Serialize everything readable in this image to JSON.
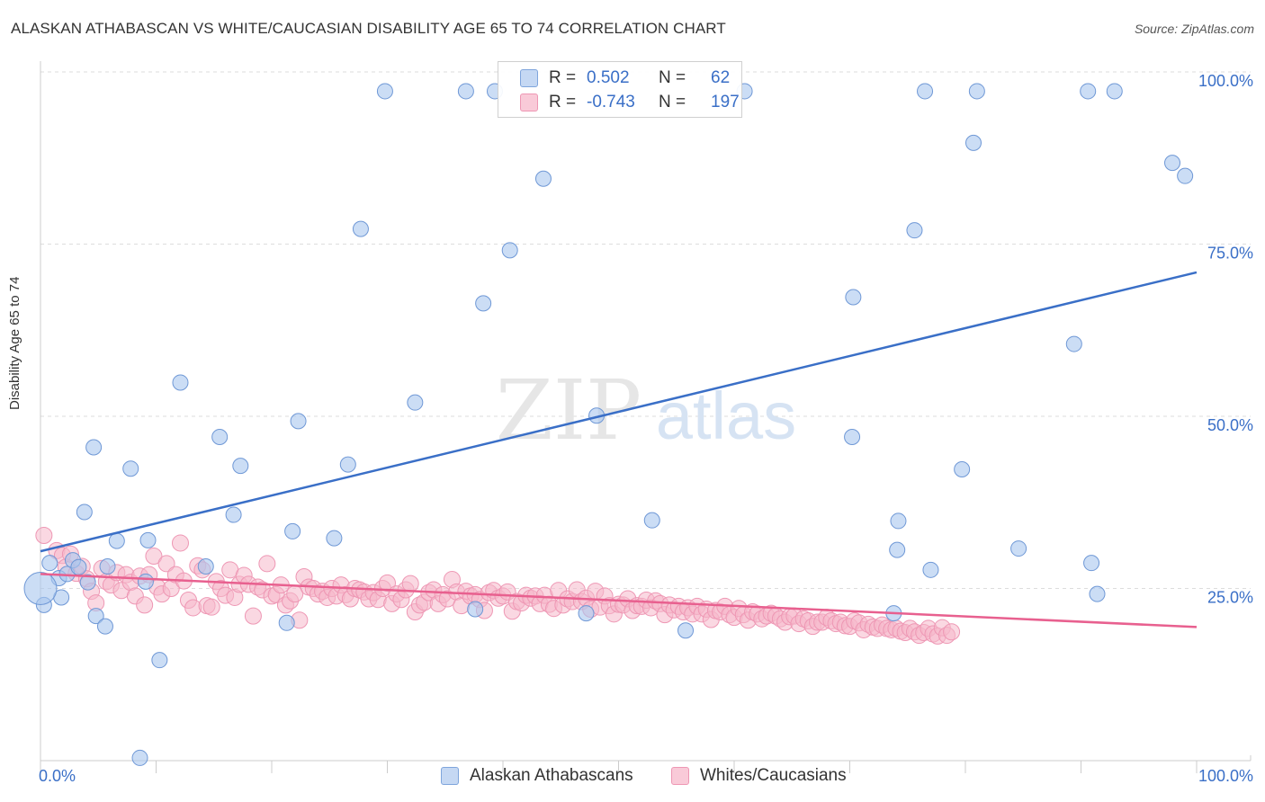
{
  "title": "ALASKAN ATHABASCAN VS WHITE/CAUCASIAN DISABILITY AGE 65 TO 74 CORRELATION CHART",
  "source": "Source: ZipAtlas.com",
  "colors": {
    "blue": "#3a6fc7",
    "blue_fill": "#a9c6ee",
    "pink": "#e8608f",
    "pink_fill": "#f6b8cb",
    "grid": "#dddddd"
  },
  "legend": {
    "r_label": "R =",
    "n_label": "N =",
    "rows": [
      {
        "r": "0.502",
        "n": "62"
      },
      {
        "r": "-0.743",
        "n": "197"
      }
    ]
  },
  "chart_data": {
    "type": "scatter",
    "title": "ALASKAN ATHABASCAN VS WHITE/CAUCASIAN DISABILITY AGE 65 TO 74 CORRELATION CHART",
    "xlabel": "",
    "ylabel": "Disability Age 65 to 74",
    "xlim": [
      0,
      100
    ],
    "ylim": [
      0,
      100
    ],
    "x_tick_labels": [
      "0.0%",
      "100.0%"
    ],
    "y_tick_labels": [
      "25.0%",
      "50.0%",
      "75.0%",
      "100.0%"
    ],
    "watermark": {
      "zip": "ZIP",
      "atlas": "atlas"
    },
    "series": [
      {
        "name": "Alaskan Athabascans",
        "color": "#3a6fc7",
        "trend": {
          "x": [
            0,
            100
          ],
          "y": [
            30.4,
            70.9
          ]
        },
        "points": [
          [
            0.3,
            22.6
          ],
          [
            0.8,
            28.7
          ],
          [
            1.6,
            26.5
          ],
          [
            1.8,
            23.7
          ],
          [
            2.3,
            27.1
          ],
          [
            2.8,
            29.1
          ],
          [
            3.3,
            28.1
          ],
          [
            3.8,
            36.1
          ],
          [
            4.1,
            25.9
          ],
          [
            4.6,
            45.5
          ],
          [
            4.8,
            21.0
          ],
          [
            5.6,
            19.5
          ],
          [
            5.8,
            28.2
          ],
          [
            6.6,
            31.9
          ],
          [
            7.8,
            42.4
          ],
          [
            8.6,
            0.4
          ],
          [
            9.1,
            26.0
          ],
          [
            9.3,
            32.0
          ],
          [
            10.3,
            14.6
          ],
          [
            12.1,
            54.9
          ],
          [
            15.5,
            47.0
          ],
          [
            14.3,
            28.2
          ],
          [
            16.7,
            35.7
          ],
          [
            17.3,
            42.8
          ],
          [
            21.3,
            20.0
          ],
          [
            21.8,
            33.3
          ],
          [
            22.3,
            49.3
          ],
          [
            25.4,
            32.3
          ],
          [
            26.6,
            43.0
          ],
          [
            27.7,
            77.2
          ],
          [
            29.8,
            97.2
          ],
          [
            32.4,
            52.0
          ],
          [
            37.6,
            22.0
          ],
          [
            38.3,
            66.4
          ],
          [
            39.3,
            97.2
          ],
          [
            40.6,
            74.1
          ],
          [
            43.5,
            84.5
          ],
          [
            47.2,
            21.4
          ],
          [
            48.1,
            50.1
          ],
          [
            52.9,
            34.9
          ],
          [
            55.8,
            18.9
          ],
          [
            60.9,
            97.2
          ],
          [
            70.2,
            47.0
          ],
          [
            70.3,
            67.3
          ],
          [
            76.5,
            97.2
          ],
          [
            80.7,
            89.7
          ],
          [
            73.8,
            21.4
          ],
          [
            74.1,
            30.6
          ],
          [
            74.2,
            34.8
          ],
          [
            75.6,
            77.0
          ],
          [
            77.0,
            27.7
          ],
          [
            79.7,
            42.3
          ],
          [
            81.0,
            97.2
          ],
          [
            84.6,
            30.8
          ],
          [
            89.4,
            60.5
          ],
          [
            90.9,
            28.7
          ],
          [
            91.4,
            24.2
          ],
          [
            92.9,
            97.2
          ],
          [
            97.9,
            86.8
          ],
          [
            99.0,
            84.9
          ],
          [
            36.8,
            97.2
          ],
          [
            90.6,
            97.2
          ]
        ]
      },
      {
        "name": "Whites/Caucasians",
        "color": "#e8608f",
        "trend": {
          "x": [
            0,
            100
          ],
          "y": [
            27.1,
            19.4
          ]
        },
        "points": [
          [
            0.3,
            32.7
          ],
          [
            1.4,
            30.5
          ],
          [
            1.9,
            29.8
          ],
          [
            2.2,
            28.1
          ],
          [
            2.6,
            30.0
          ],
          [
            3.1,
            27.2
          ],
          [
            3.6,
            28.2
          ],
          [
            4.0,
            26.4
          ],
          [
            4.4,
            24.6
          ],
          [
            4.8,
            22.9
          ],
          [
            5.3,
            27.9
          ],
          [
            5.7,
            26.0
          ],
          [
            6.1,
            25.5
          ],
          [
            6.6,
            27.3
          ],
          [
            7.0,
            24.7
          ],
          [
            7.4,
            27.0
          ],
          [
            7.8,
            25.9
          ],
          [
            8.2,
            23.9
          ],
          [
            8.6,
            26.8
          ],
          [
            9.0,
            22.6
          ],
          [
            9.4,
            27.0
          ],
          [
            9.8,
            29.7
          ],
          [
            10.1,
            25.2
          ],
          [
            10.5,
            24.2
          ],
          [
            10.9,
            28.6
          ],
          [
            11.3,
            25.0
          ],
          [
            11.7,
            27.0
          ],
          [
            12.1,
            31.6
          ],
          [
            12.4,
            26.1
          ],
          [
            12.8,
            23.3
          ],
          [
            13.2,
            22.2
          ],
          [
            13.6,
            28.3
          ],
          [
            14.0,
            27.7
          ],
          [
            14.4,
            22.5
          ],
          [
            14.8,
            22.3
          ],
          [
            15.2,
            26.0
          ],
          [
            15.6,
            25.0
          ],
          [
            16.0,
            24.0
          ],
          [
            16.4,
            27.7
          ],
          [
            16.8,
            23.7
          ],
          [
            17.2,
            25.6
          ],
          [
            17.6,
            26.9
          ],
          [
            18.0,
            25.6
          ],
          [
            18.4,
            21.0
          ],
          [
            18.8,
            25.2
          ],
          [
            19.2,
            24.8
          ],
          [
            19.6,
            28.6
          ],
          [
            20.0,
            23.9
          ],
          [
            20.4,
            24.1
          ],
          [
            20.8,
            25.5
          ],
          [
            21.2,
            22.6
          ],
          [
            21.6,
            23.2
          ],
          [
            22.0,
            24.2
          ],
          [
            22.4,
            20.4
          ],
          [
            22.8,
            26.7
          ],
          [
            23.2,
            25.2
          ],
          [
            23.6,
            25.0
          ],
          [
            24.0,
            24.2
          ],
          [
            24.4,
            24.6
          ],
          [
            24.8,
            23.7
          ],
          [
            25.2,
            25.0
          ],
          [
            25.6,
            23.9
          ],
          [
            26.0,
            25.5
          ],
          [
            26.4,
            24.1
          ],
          [
            26.8,
            23.5
          ],
          [
            27.2,
            25.0
          ],
          [
            27.6,
            24.8
          ],
          [
            28.0,
            24.5
          ],
          [
            28.4,
            23.5
          ],
          [
            28.8,
            24.4
          ],
          [
            29.2,
            23.4
          ],
          [
            29.6,
            25.0
          ],
          [
            30.0,
            25.8
          ],
          [
            30.4,
            22.8
          ],
          [
            30.8,
            24.2
          ],
          [
            31.2,
            23.4
          ],
          [
            31.6,
            24.8
          ],
          [
            32.0,
            25.7
          ],
          [
            32.4,
            21.6
          ],
          [
            32.8,
            22.6
          ],
          [
            33.2,
            23.0
          ],
          [
            33.6,
            24.4
          ],
          [
            34.0,
            24.8
          ],
          [
            34.4,
            22.8
          ],
          [
            34.8,
            24.1
          ],
          [
            35.2,
            23.5
          ],
          [
            35.6,
            26.3
          ],
          [
            36.0,
            24.5
          ],
          [
            36.4,
            22.5
          ],
          [
            36.8,
            24.6
          ],
          [
            37.2,
            23.9
          ],
          [
            37.6,
            24.1
          ],
          [
            38.0,
            23.4
          ],
          [
            38.4,
            21.8
          ],
          [
            38.8,
            24.4
          ],
          [
            39.2,
            24.7
          ],
          [
            39.6,
            23.6
          ],
          [
            40.0,
            23.9
          ],
          [
            40.4,
            24.5
          ],
          [
            40.8,
            21.7
          ],
          [
            41.2,
            23.1
          ],
          [
            41.6,
            22.9
          ],
          [
            42.0,
            24.0
          ],
          [
            42.4,
            23.6
          ],
          [
            42.8,
            23.9
          ],
          [
            43.2,
            22.8
          ],
          [
            43.6,
            24.0
          ],
          [
            44.0,
            22.7
          ],
          [
            44.4,
            22.1
          ],
          [
            44.8,
            24.7
          ],
          [
            45.2,
            22.6
          ],
          [
            45.6,
            23.5
          ],
          [
            46.0,
            23.1
          ],
          [
            46.4,
            24.8
          ],
          [
            46.8,
            23.1
          ],
          [
            47.2,
            23.6
          ],
          [
            47.6,
            22.0
          ],
          [
            48.0,
            24.6
          ],
          [
            48.4,
            22.3
          ],
          [
            48.8,
            23.9
          ],
          [
            49.2,
            22.5
          ],
          [
            49.6,
            21.3
          ],
          [
            50.0,
            22.7
          ],
          [
            50.4,
            22.6
          ],
          [
            50.8,
            23.5
          ],
          [
            51.2,
            21.8
          ],
          [
            51.6,
            22.5
          ],
          [
            52.0,
            22.4
          ],
          [
            52.4,
            23.3
          ],
          [
            52.8,
            22.2
          ],
          [
            53.2,
            23.2
          ],
          [
            53.6,
            22.8
          ],
          [
            54.0,
            21.2
          ],
          [
            54.4,
            22.6
          ],
          [
            54.8,
            21.9
          ],
          [
            55.2,
            22.4
          ],
          [
            55.6,
            21.6
          ],
          [
            56.0,
            22.2
          ],
          [
            56.4,
            21.3
          ],
          [
            56.8,
            22.4
          ],
          [
            57.2,
            21.3
          ],
          [
            57.6,
            22.0
          ],
          [
            58.0,
            20.5
          ],
          [
            58.4,
            21.8
          ],
          [
            58.8,
            21.6
          ],
          [
            59.2,
            22.4
          ],
          [
            59.6,
            21.2
          ],
          [
            60.0,
            20.8
          ],
          [
            60.4,
            22.1
          ],
          [
            60.8,
            21.2
          ],
          [
            61.2,
            20.4
          ],
          [
            61.6,
            21.6
          ],
          [
            62.0,
            21.3
          ],
          [
            62.4,
            20.6
          ],
          [
            62.8,
            21.0
          ],
          [
            63.2,
            21.4
          ],
          [
            63.6,
            21.0
          ],
          [
            64.0,
            20.6
          ],
          [
            64.4,
            20.1
          ],
          [
            64.8,
            20.9
          ],
          [
            65.2,
            21.0
          ],
          [
            65.6,
            19.9
          ],
          [
            66.0,
            20.6
          ],
          [
            66.4,
            20.3
          ],
          [
            66.8,
            19.5
          ],
          [
            67.2,
            20.1
          ],
          [
            67.6,
            20.1
          ],
          [
            68.0,
            20.8
          ],
          [
            68.4,
            20.3
          ],
          [
            68.8,
            19.9
          ],
          [
            69.2,
            20.1
          ],
          [
            69.6,
            19.6
          ],
          [
            70.0,
            19.5
          ],
          [
            70.4,
            20.3
          ],
          [
            70.8,
            20.0
          ],
          [
            71.2,
            19.0
          ],
          [
            71.6,
            19.8
          ],
          [
            72.0,
            19.4
          ],
          [
            72.4,
            19.2
          ],
          [
            72.8,
            19.7
          ],
          [
            73.2,
            19.2
          ],
          [
            73.6,
            19.0
          ],
          [
            74.0,
            19.2
          ],
          [
            74.4,
            18.8
          ],
          [
            74.8,
            18.6
          ],
          [
            75.2,
            19.2
          ],
          [
            75.6,
            18.7
          ],
          [
            76.0,
            18.2
          ],
          [
            76.4,
            18.6
          ],
          [
            76.8,
            19.2
          ],
          [
            77.2,
            18.4
          ],
          [
            77.6,
            18.1
          ],
          [
            78.0,
            19.3
          ],
          [
            78.4,
            18.2
          ],
          [
            78.8,
            18.7
          ]
        ]
      }
    ]
  },
  "bottom_legend": [
    "Alaskan Athabascans",
    "Whites/Caucasians"
  ]
}
